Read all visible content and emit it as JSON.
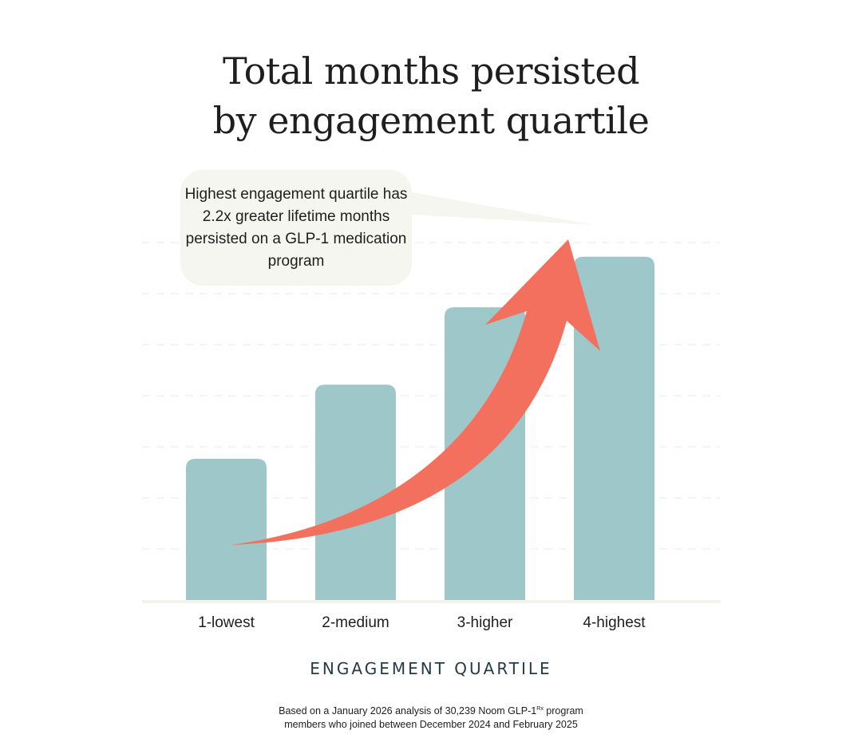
{
  "chart_data": {
    "type": "bar",
    "title_lines": [
      "Total months persisted",
      "by engagement quartile"
    ],
    "categories": [
      "1-lowest",
      "2-medium",
      "3-higher",
      "4-highest"
    ],
    "values": [
      1.0,
      1.44,
      1.9,
      2.2
    ],
    "value_unit": "relative lifetime months persisted (1-lowest = 1)",
    "ylim": [
      0,
      2.5
    ],
    "xlabel": "ENGAGEMENT QUARTILE",
    "ylabel": "",
    "grid": true,
    "legend": "none",
    "bar_color": "#9dc7c8",
    "annotation": {
      "text": "Highest engagement quartile has 2.2x greater lifetime months persisted on a GLP-1 medication program",
      "points_to": "4-highest",
      "callout_bg": "#f6f6f1"
    },
    "trend_arrow": {
      "from": "1-lowest",
      "to": "4-highest",
      "color": "#f4705e"
    }
  },
  "footnote": {
    "line1_pre": "Based on a January 2026 analysis of 30,239 Noom GLP-1",
    "line1_sup": "Rx",
    "line1_post": " program",
    "line2": "members who joined between December 2024 and February 2025"
  },
  "colors": {
    "background": "#ffffff",
    "bar": "#9dc7c8",
    "arrow": "#f4705e",
    "callout": "#f6f6f1",
    "text": "#1e1e1e",
    "axis_title": "#243a48"
  }
}
